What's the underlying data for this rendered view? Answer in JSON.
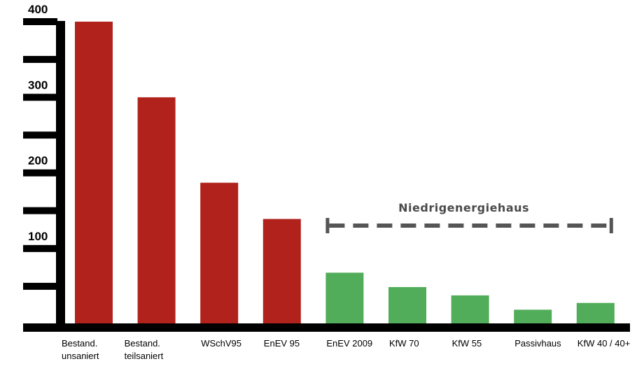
{
  "chart_data": {
    "type": "bar",
    "categories": [
      [
        "Bestand.",
        "unsaniert"
      ],
      [
        "Bestand.",
        "teilsaniert"
      ],
      [
        "WSchV95"
      ],
      [
        "EnEV 95"
      ],
      [
        "EnEV 2009"
      ],
      [
        "KfW 70"
      ],
      [
        "KfW 55"
      ],
      [
        "Passivhaus"
      ],
      [
        "KfW 40 / 40+"
      ]
    ],
    "values": [
      400,
      300,
      187,
      139,
      68,
      49,
      38,
      19,
      28
    ],
    "bar_colors": [
      "#b0221b",
      "#b0221b",
      "#b0221b",
      "#b0221b",
      "#52ad5a",
      "#52ad5a",
      "#52ad5a",
      "#52ad5a",
      "#52ad5a"
    ],
    "yticks": [
      100,
      200,
      300,
      400
    ],
    "ylim": [
      0,
      400
    ],
    "title": "",
    "xlabel": "",
    "ylabel": "",
    "grid": false,
    "bracket": {
      "label": "Niedrigenergiehaus",
      "from_category": 4,
      "to_category": 8,
      "color": "#555555",
      "style": "dashed"
    },
    "axis_color": "#000000"
  }
}
